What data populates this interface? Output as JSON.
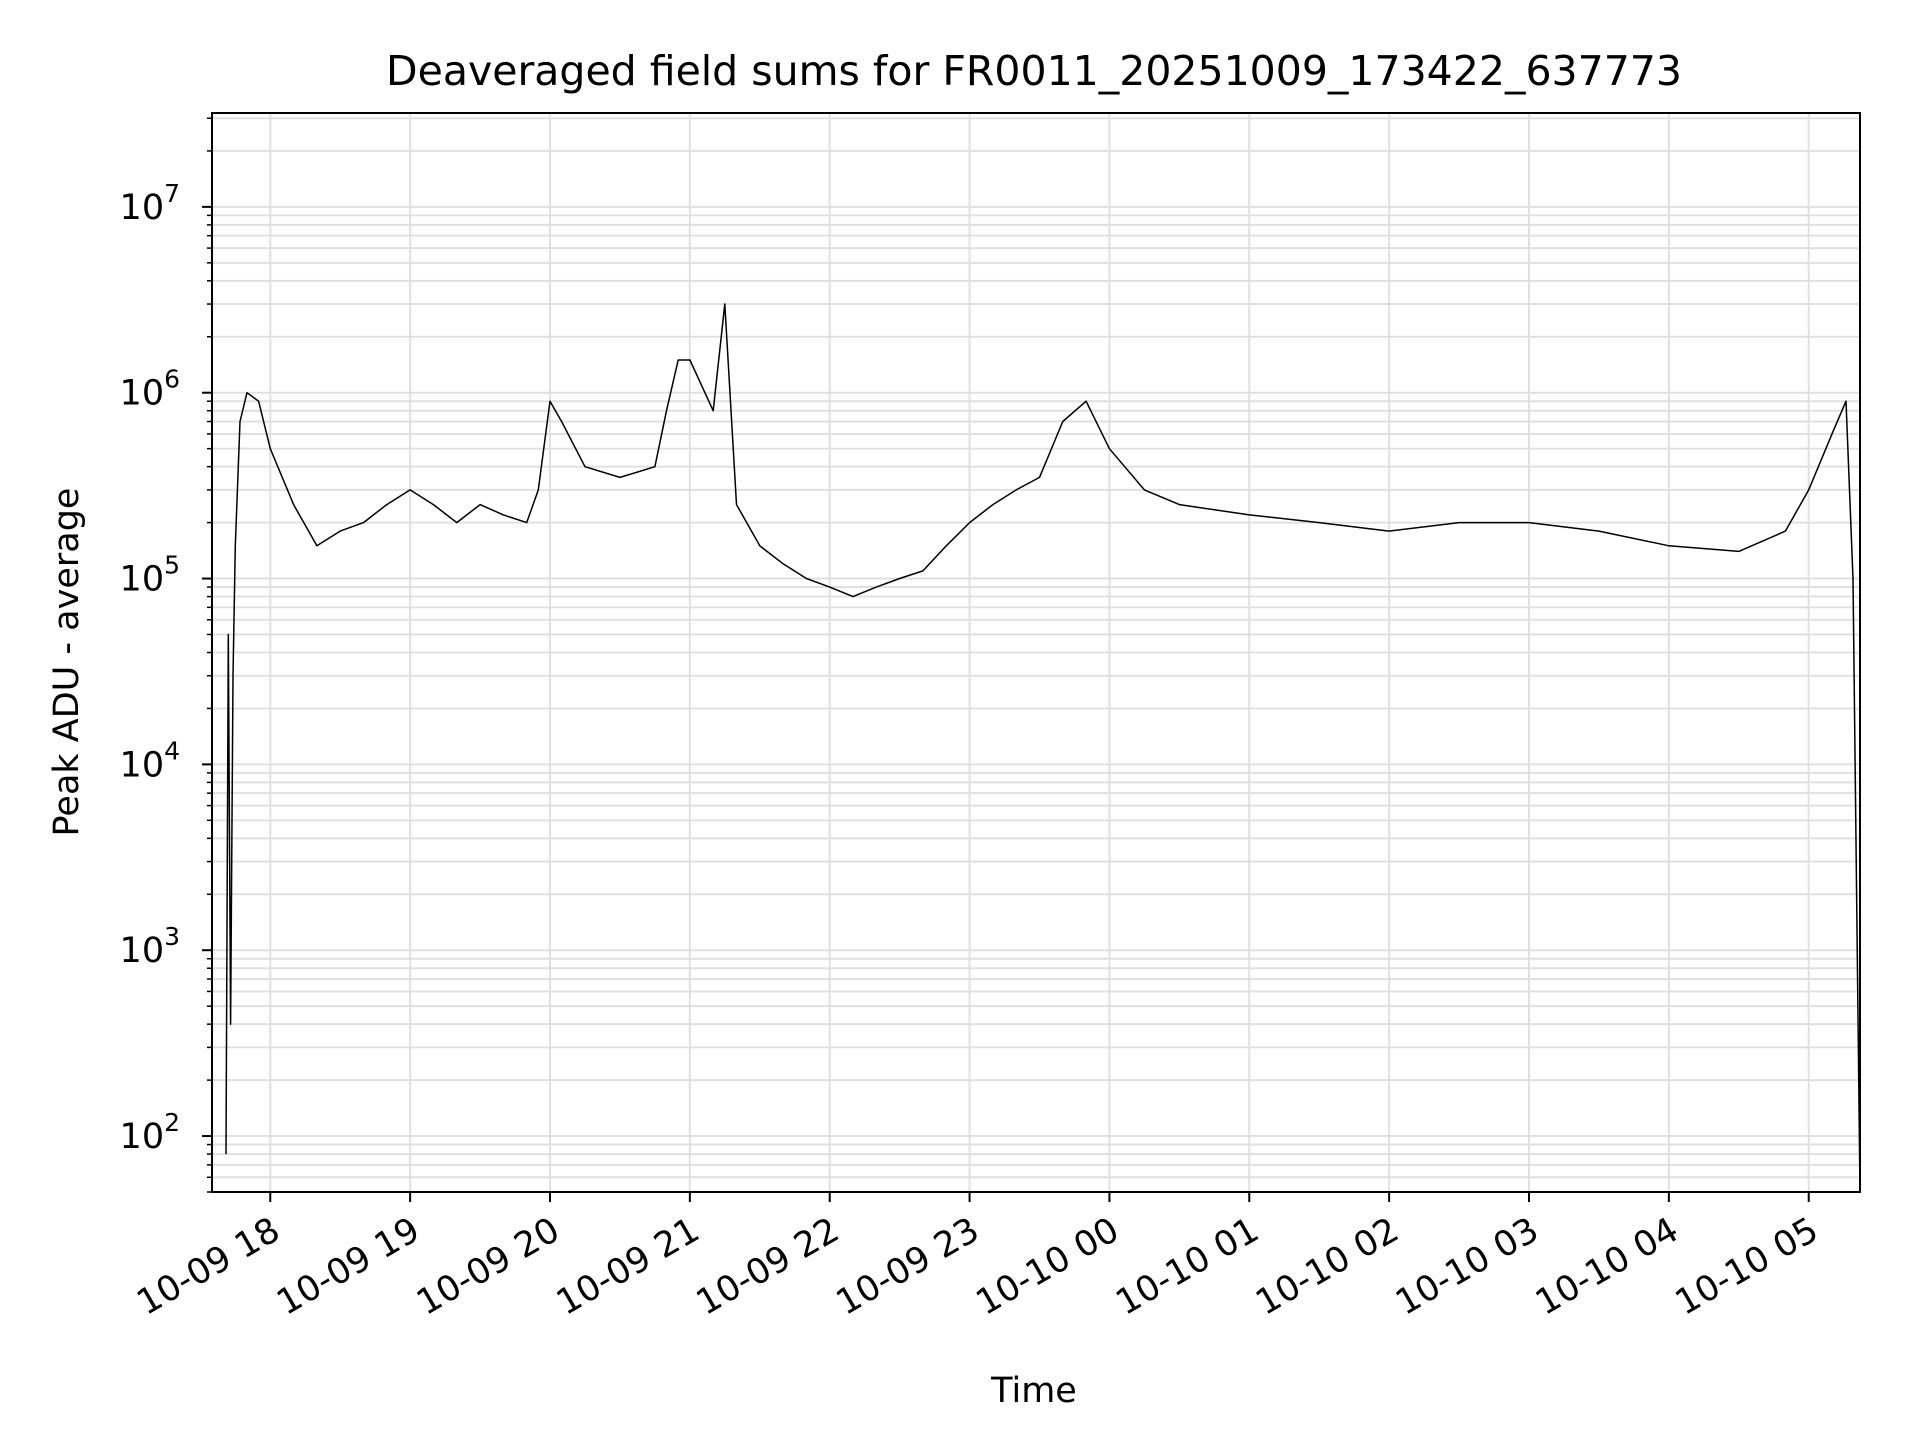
{
  "chart_data": {
    "type": "line",
    "title": "Deaveraged field sums for FR0011_20251009_173422_637773",
    "xlabel": "Time",
    "ylabel": "Peak ADU - average",
    "y_scale": "log",
    "ylim": [
      50,
      32000000
    ],
    "xlim": [
      "2025-10-09 17:35",
      "2025-10-10 05:22"
    ],
    "grid": true,
    "grid_color": "#e0e0e0",
    "line_color": "#000000",
    "x_ticks": [
      {
        "value": "2025-10-09 18:00",
        "label": "10-09 18"
      },
      {
        "value": "2025-10-09 19:00",
        "label": "10-09 19"
      },
      {
        "value": "2025-10-09 20:00",
        "label": "10-09 20"
      },
      {
        "value": "2025-10-09 21:00",
        "label": "10-09 21"
      },
      {
        "value": "2025-10-09 22:00",
        "label": "10-09 22"
      },
      {
        "value": "2025-10-09 23:00",
        "label": "10-09 23"
      },
      {
        "value": "2025-10-10 00:00",
        "label": "10-10 00"
      },
      {
        "value": "2025-10-10 01:00",
        "label": "10-10 01"
      },
      {
        "value": "2025-10-10 02:00",
        "label": "10-10 02"
      },
      {
        "value": "2025-10-10 03:00",
        "label": "10-10 03"
      },
      {
        "value": "2025-10-10 04:00",
        "label": "10-10 04"
      },
      {
        "value": "2025-10-10 05:00",
        "label": "10-10 05"
      }
    ],
    "y_ticks": [
      {
        "value": 100,
        "base": "10",
        "exp": "2"
      },
      {
        "value": 1000,
        "base": "10",
        "exp": "3"
      },
      {
        "value": 10000,
        "base": "10",
        "exp": "4"
      },
      {
        "value": 100000,
        "base": "10",
        "exp": "5"
      },
      {
        "value": 1000000,
        "base": "10",
        "exp": "6"
      },
      {
        "value": 10000000,
        "base": "10",
        "exp": "7"
      }
    ],
    "series": [
      {
        "x": [
          "2025-10-09 17:41",
          "2025-10-09 17:42",
          "2025-10-09 17:43",
          "2025-10-09 17:44",
          "2025-10-09 17:45",
          "2025-10-09 17:47",
          "2025-10-09 17:50",
          "2025-10-09 17:55",
          "2025-10-09 18:00",
          "2025-10-09 18:10",
          "2025-10-09 18:20",
          "2025-10-09 18:30",
          "2025-10-09 18:40",
          "2025-10-09 18:50",
          "2025-10-09 19:00",
          "2025-10-09 19:10",
          "2025-10-09 19:20",
          "2025-10-09 19:30",
          "2025-10-09 19:40",
          "2025-10-09 19:50",
          "2025-10-09 19:55",
          "2025-10-09 20:00",
          "2025-10-09 20:05",
          "2025-10-09 20:15",
          "2025-10-09 20:30",
          "2025-10-09 20:45",
          "2025-10-09 20:50",
          "2025-10-09 20:55",
          "2025-10-09 21:00",
          "2025-10-09 21:10",
          "2025-10-09 21:15",
          "2025-10-09 21:20",
          "2025-10-09 21:30",
          "2025-10-09 21:40",
          "2025-10-09 21:50",
          "2025-10-09 22:00",
          "2025-10-09 22:10",
          "2025-10-09 22:20",
          "2025-10-09 22:30",
          "2025-10-09 22:40",
          "2025-10-09 22:50",
          "2025-10-09 23:00",
          "2025-10-09 23:10",
          "2025-10-09 23:20",
          "2025-10-09 23:30",
          "2025-10-09 23:40",
          "2025-10-09 23:50",
          "2025-10-10 00:00",
          "2025-10-10 00:15",
          "2025-10-10 00:30",
          "2025-10-10 01:00",
          "2025-10-10 01:30",
          "2025-10-10 02:00",
          "2025-10-10 02:30",
          "2025-10-10 03:00",
          "2025-10-10 03:30",
          "2025-10-10 04:00",
          "2025-10-10 04:30",
          "2025-10-10 04:50",
          "2025-10-10 05:00",
          "2025-10-10 05:10",
          "2025-10-10 05:16",
          "2025-10-10 05:19",
          "2025-10-10 05:22"
        ],
        "values": [
          80,
          50000,
          400,
          30000,
          150000,
          700000,
          1000000,
          900000,
          500000,
          250000,
          150000,
          180000,
          200000,
          250000,
          300000,
          250000,
          200000,
          250000,
          220000,
          200000,
          300000,
          900000,
          700000,
          400000,
          350000,
          400000,
          800000,
          1500000,
          1500000,
          800000,
          3000000,
          250000,
          150000,
          120000,
          100000,
          90000,
          80000,
          90000,
          100000,
          110000,
          150000,
          200000,
          250000,
          300000,
          350000,
          700000,
          900000,
          500000,
          300000,
          250000,
          220000,
          200000,
          180000,
          200000,
          200000,
          180000,
          150000,
          140000,
          180000,
          300000,
          600000,
          900000,
          100000,
          50
        ]
      }
    ]
  }
}
